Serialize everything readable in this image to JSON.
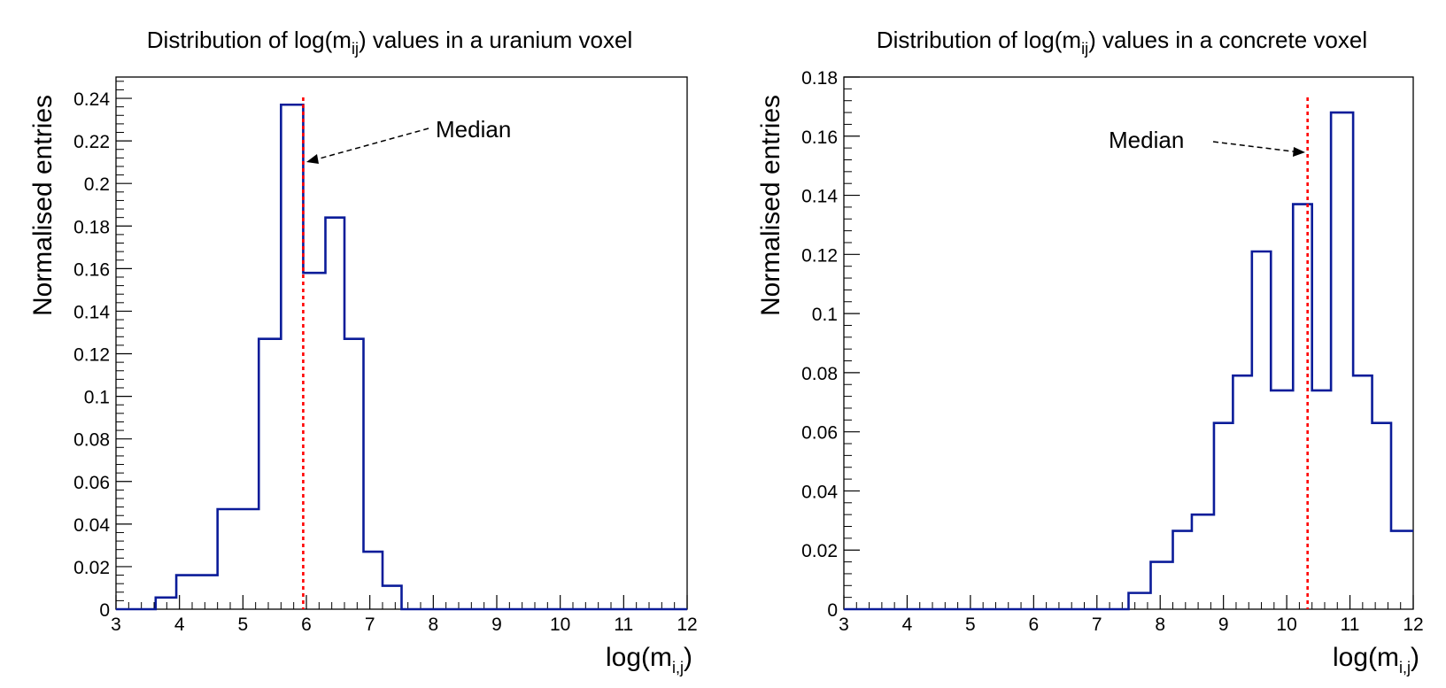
{
  "chart_data": [
    {
      "type": "histogram",
      "title_main": "Distribution of log(m",
      "title_sub": "ij",
      "title_rest": ") values in a uranium voxel",
      "xlabel_main": "log(m",
      "xlabel_sub": "i,j",
      "xlabel_rest": ")",
      "ylabel": "Normalised entries",
      "xlim": [
        3,
        12
      ],
      "ylim": [
        0,
        0.25
      ],
      "xticks": [
        "3",
        "4",
        "5",
        "6",
        "7",
        "8",
        "9",
        "10",
        "11",
        "12"
      ],
      "yticks": [
        "0",
        "0.02",
        "0.04",
        "0.06",
        "0.08",
        "0.1",
        "0.12",
        "0.14",
        "0.16",
        "0.18",
        "0.2",
        "0.22",
        "0.24"
      ],
      "line_color": "#0b1c99",
      "median": 5.95,
      "median_color": "#ff0000",
      "median_label": "Median",
      "bin_edges": [
        3.0,
        3.625,
        3.95,
        4.6,
        5.25,
        5.6,
        5.95,
        6.3,
        6.6,
        6.9,
        7.2,
        7.5,
        12.0
      ],
      "values": [
        0.0,
        0.0055,
        0.016,
        0.047,
        0.127,
        0.237,
        0.158,
        0.184,
        0.127,
        0.027,
        0.011,
        0.0
      ]
    },
    {
      "type": "histogram",
      "title_main": "Distribution of log(m",
      "title_sub": "ij",
      "title_rest": ") values in a concrete voxel",
      "xlabel_main": "log(m",
      "xlabel_sub": "i,j",
      "xlabel_rest": ")",
      "ylabel": "Normalised entries",
      "xlim": [
        3,
        12
      ],
      "ylim": [
        0,
        0.18
      ],
      "xticks": [
        "3",
        "4",
        "5",
        "6",
        "7",
        "8",
        "9",
        "10",
        "11",
        "12"
      ],
      "yticks": [
        "0",
        "0.02",
        "0.04",
        "0.06",
        "0.08",
        "0.1",
        "0.12",
        "0.14",
        "0.16",
        "0.18"
      ],
      "line_color": "#0b1c99",
      "median": 10.33,
      "median_color": "#ff0000",
      "median_label": "Median",
      "bin_edges": [
        3.0,
        7.5,
        7.85,
        8.2,
        8.5,
        8.85,
        9.15,
        9.45,
        9.75,
        10.1,
        10.4,
        10.7,
        11.05,
        11.35,
        11.65,
        12.0
      ],
      "values": [
        0.0,
        0.0055,
        0.016,
        0.0265,
        0.032,
        0.063,
        0.079,
        0.121,
        0.074,
        0.137,
        0.074,
        0.168,
        0.079,
        0.063,
        0.0265
      ]
    }
  ]
}
